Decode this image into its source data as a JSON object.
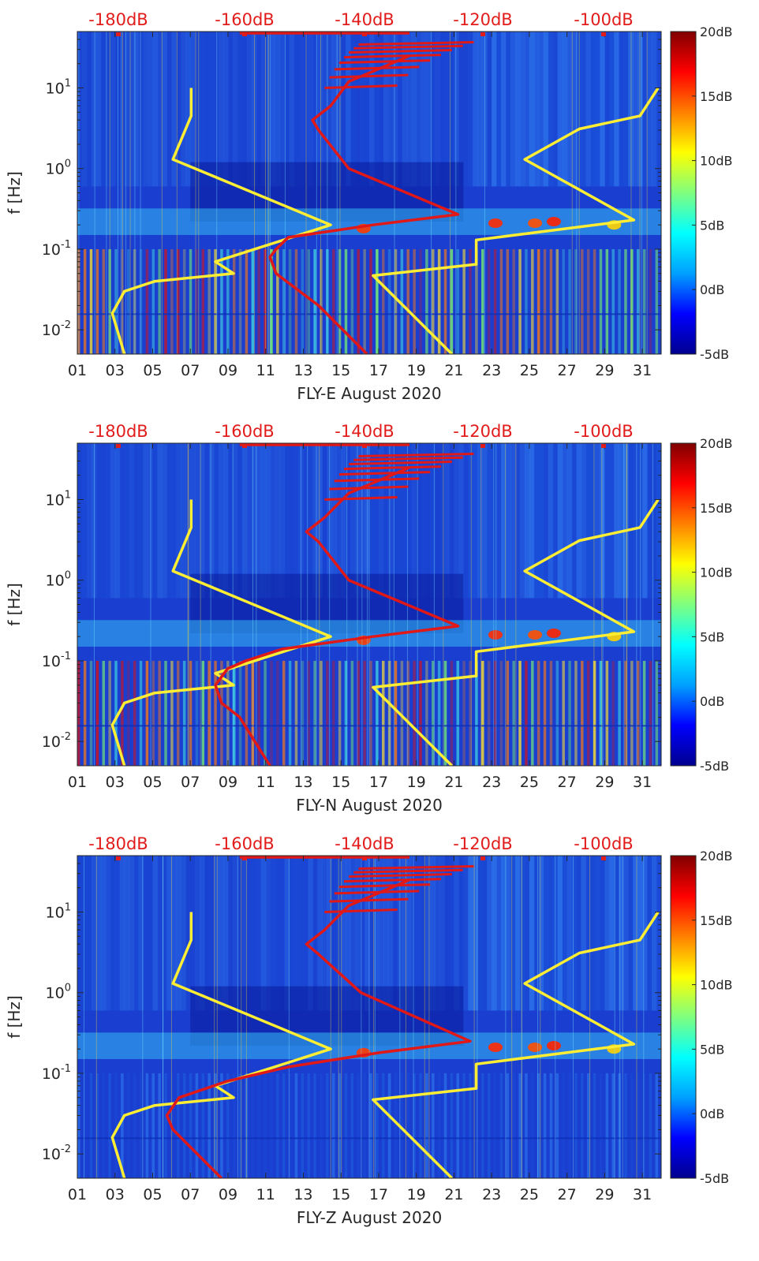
{
  "colors": {
    "spectrogram_background": "#1a3fd0",
    "cold_band": "#0a1a9a",
    "axis": "#262626",
    "top_axis_labels": "#e21b1b",
    "noise_model_lines": "#ffee33",
    "median_psd_line": "#e01818"
  },
  "colormap": [
    "#00008f",
    "#0000ff",
    "#00a0ff",
    "#00ffff",
    "#7fff7f",
    "#ffff00",
    "#ff8000",
    "#ff0000",
    "#800000"
  ],
  "chart_data": [
    {
      "type": "heatmap",
      "xlabel": "FLY-E August 2020",
      "ylabel": "f [Hz]",
      "x_range_days": [
        1,
        32
      ],
      "x_ticks": [
        "01",
        "03",
        "05",
        "07",
        "09",
        "11",
        "13",
        "15",
        "17",
        "19",
        "21",
        "23",
        "25",
        "27",
        "29",
        "31"
      ],
      "y_scale": "log",
      "y_range_hz": [
        0.005,
        50
      ],
      "y_ticks": [
        {
          "base": "10",
          "exp": "-2"
        },
        {
          "base": "10",
          "exp": "-1"
        },
        {
          "base": "10",
          "exp": "0"
        },
        {
          "base": "10",
          "exp": "1"
        }
      ],
      "top_axis_ticks": [
        "-180dB",
        "-160dB",
        "-140dB",
        "-120dB",
        "-100dB"
      ],
      "colorbar_ticks": [
        "-5dB",
        "0dB",
        "5dB",
        "10dB",
        "15dB",
        "20dB"
      ],
      "colorbar_range_db": [
        -5,
        20
      ],
      "noise_model_low": {
        "f": [
          10,
          4.5,
          1.3,
          0.2,
          0.07,
          0.05,
          0.04,
          0.03,
          0.016,
          0.005
        ],
        "db": [
          -168,
          -168,
          -171,
          -145,
          -164,
          -161,
          -174,
          -179,
          -181,
          -179
        ]
      },
      "noise_model_high": {
        "f": [
          10,
          4.5,
          3.1,
          1.3,
          0.23,
          0.13,
          0.065,
          0.047,
          0.005
        ],
        "db": [
          -91,
          -94,
          -104,
          -113,
          -95,
          -121,
          -121,
          -138,
          -125
        ]
      },
      "median_psd": {
        "f": [
          25,
          12,
          6,
          4,
          3,
          1,
          0.27,
          0.2,
          0.14,
          0.1,
          0.08,
          0.05,
          0.02,
          0.005
        ],
        "db": [
          -132,
          -142,
          -145,
          -148,
          -147,
          -142,
          -124,
          -138,
          -152,
          -154,
          -155,
          -154,
          -147,
          -139
        ]
      }
    },
    {
      "type": "heatmap",
      "xlabel": "FLY-N August 2020",
      "ylabel": "f [Hz]",
      "x_range_days": [
        1,
        32
      ],
      "x_ticks": [
        "01",
        "03",
        "05",
        "07",
        "09",
        "11",
        "13",
        "15",
        "17",
        "19",
        "21",
        "23",
        "25",
        "27",
        "29",
        "31"
      ],
      "y_scale": "log",
      "y_range_hz": [
        0.005,
        50
      ],
      "y_ticks": [
        {
          "base": "10",
          "exp": "-2"
        },
        {
          "base": "10",
          "exp": "-1"
        },
        {
          "base": "10",
          "exp": "0"
        },
        {
          "base": "10",
          "exp": "1"
        }
      ],
      "top_axis_ticks": [
        "-180dB",
        "-160dB",
        "-140dB",
        "-120dB",
        "-100dB"
      ],
      "colorbar_ticks": [
        "-5dB",
        "0dB",
        "5dB",
        "10dB",
        "15dB",
        "20dB"
      ],
      "colorbar_range_db": [
        -5,
        20
      ],
      "noise_model_low": {
        "f": [
          10,
          4.5,
          1.3,
          0.2,
          0.07,
          0.05,
          0.04,
          0.03,
          0.016,
          0.005
        ],
        "db": [
          -168,
          -168,
          -171,
          -145,
          -164,
          -161,
          -174,
          -179,
          -181,
          -179
        ]
      },
      "noise_model_high": {
        "f": [
          10,
          4.5,
          3.1,
          1.3,
          0.23,
          0.13,
          0.065,
          0.047,
          0.005
        ],
        "db": [
          -91,
          -94,
          -104,
          -113,
          -95,
          -121,
          -121,
          -138,
          -125
        ]
      },
      "median_psd": {
        "f": [
          25,
          12,
          6,
          4,
          3,
          1,
          0.27,
          0.2,
          0.14,
          0.1,
          0.08,
          0.05,
          0.03,
          0.02,
          0.005
        ],
        "db": [
          -132,
          -142,
          -146,
          -149,
          -147,
          -142,
          -124,
          -138,
          -153,
          -159,
          -162,
          -164,
          -163,
          -160,
          -155
        ]
      }
    },
    {
      "type": "heatmap",
      "xlabel": "FLY-Z August 2020",
      "ylabel": "f [Hz]",
      "x_range_days": [
        1,
        32
      ],
      "x_ticks": [
        "01",
        "03",
        "05",
        "07",
        "09",
        "11",
        "13",
        "15",
        "17",
        "19",
        "21",
        "23",
        "25",
        "27",
        "29",
        "31"
      ],
      "y_scale": "log",
      "y_range_hz": [
        0.005,
        50
      ],
      "y_ticks": [
        {
          "base": "10",
          "exp": "-2"
        },
        {
          "base": "10",
          "exp": "-1"
        },
        {
          "base": "10",
          "exp": "0"
        },
        {
          "base": "10",
          "exp": "1"
        }
      ],
      "top_axis_ticks": [
        "-180dB",
        "-160dB",
        "-140dB",
        "-120dB",
        "-100dB"
      ],
      "colorbar_ticks": [
        "-5dB",
        "0dB",
        "5dB",
        "10dB",
        "15dB",
        "20dB"
      ],
      "colorbar_range_db": [
        -5,
        20
      ],
      "noise_model_low": {
        "f": [
          10,
          4.5,
          1.3,
          0.2,
          0.07,
          0.05,
          0.04,
          0.03,
          0.016,
          0.005
        ],
        "db": [
          -168,
          -168,
          -171,
          -145,
          -164,
          -161,
          -174,
          -179,
          -181,
          -179
        ]
      },
      "noise_model_high": {
        "f": [
          10,
          4.5,
          3.1,
          1.3,
          0.23,
          0.13,
          0.065,
          0.047,
          0.005
        ],
        "db": [
          -91,
          -94,
          -104,
          -113,
          -95,
          -121,
          -121,
          -138,
          -125
        ]
      },
      "median_psd": {
        "f": [
          25,
          12,
          6,
          4,
          3,
          1,
          0.25,
          0.18,
          0.12,
          0.08,
          0.05,
          0.03,
          0.02,
          0.005
        ],
        "db": [
          -132,
          -142,
          -146,
          -149,
          -147,
          -140,
          -122,
          -137,
          -152,
          -162,
          -170,
          -172,
          -171,
          -163
        ]
      }
    }
  ]
}
